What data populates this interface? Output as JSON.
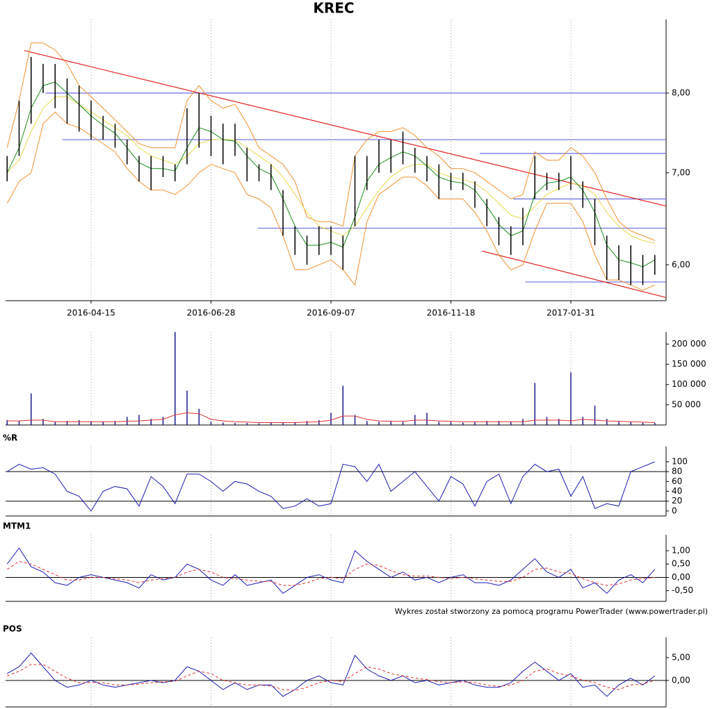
{
  "chart_data": [
    {
      "type": "stock",
      "title": "KREC",
      "log": true,
      "categories": [
        null,
        null,
        null,
        null,
        null,
        null,
        null,
        "2016-04-15",
        null,
        null,
        null,
        null,
        null,
        null,
        null,
        null,
        null,
        "2016-06-28",
        null,
        null,
        null,
        null,
        null,
        null,
        null,
        null,
        null,
        "2016-09-07",
        null,
        null,
        null,
        null,
        null,
        null,
        null,
        null,
        null,
        "2016-11-18",
        null,
        null,
        null,
        null,
        null,
        null,
        null,
        null,
        null,
        "2017-01-31",
        null,
        null,
        null,
        null,
        null,
        null,
        null
      ],
      "ylim": [
        5.65,
        9.05
      ],
      "yticks": [
        {
          "value": 6,
          "label": "6,00"
        },
        {
          "value": 7,
          "label": "7,00"
        },
        {
          "value": 8,
          "label": "8,00"
        }
      ],
      "color": "#000000",
      "high": [
        7.2,
        7.9,
        8.5,
        8.4,
        8.4,
        8.2,
        8.1,
        7.9,
        7.7,
        7.6,
        7.4,
        7.2,
        7.2,
        7.2,
        7.1,
        7.8,
        8.0,
        7.7,
        7.6,
        7.6,
        7.3,
        7.1,
        7.1,
        6.8,
        6.4,
        6.3,
        6.4,
        6.4,
        6.3,
        7.2,
        7.2,
        7.4,
        7.4,
        7.5,
        7.3,
        7.2,
        7.1,
        7.0,
        7.0,
        6.9,
        6.7,
        6.5,
        6.4,
        6.6,
        7.2,
        7.0,
        7.0,
        7.2,
        6.9,
        6.7,
        6.3,
        6.2,
        6.2,
        6.1,
        6.1
      ],
      "low": [
        6.9,
        7.2,
        7.6,
        8.0,
        7.8,
        7.6,
        7.5,
        7.4,
        7.4,
        7.3,
        7.1,
        6.9,
        6.8,
        6.95,
        6.9,
        7.1,
        7.3,
        7.2,
        7.1,
        7.2,
        6.9,
        6.9,
        6.8,
        6.3,
        6.1,
        6.0,
        6.1,
        6.1,
        5.95,
        6.4,
        6.8,
        7.0,
        7.0,
        7.1,
        7.0,
        6.9,
        6.7,
        6.8,
        6.8,
        6.6,
        6.4,
        6.2,
        6.1,
        6.2,
        6.7,
        6.8,
        6.8,
        6.8,
        6.6,
        6.2,
        5.85,
        5.85,
        5.8,
        5.8,
        5.9
      ],
      "series": [
        {
          "color": "#f09030",
          "values": [
            7.3,
            7.9,
            8.7,
            8.7,
            8.6,
            8.4,
            8.1,
            7.95,
            7.8,
            7.65,
            7.5,
            7.35,
            7.3,
            7.3,
            7.3,
            7.9,
            8.1,
            7.9,
            7.8,
            7.85,
            7.6,
            7.3,
            7.2,
            7.1,
            6.9,
            6.5,
            6.45,
            6.45,
            6.4,
            7.2,
            7.4,
            7.5,
            7.5,
            7.55,
            7.45,
            7.3,
            7.2,
            7.05,
            7.05,
            7.0,
            6.9,
            6.8,
            6.7,
            6.75,
            7.25,
            7.15,
            7.15,
            7.3,
            7.2,
            7.0,
            6.7,
            6.45,
            6.35,
            6.3,
            6.25
          ]
        },
        {
          "color": "#f09030",
          "values": [
            6.65,
            6.9,
            7.0,
            7.6,
            7.75,
            7.6,
            7.55,
            7.45,
            7.35,
            7.25,
            7.05,
            6.9,
            6.8,
            6.8,
            6.75,
            6.85,
            7.0,
            7.1,
            7.05,
            7.0,
            6.75,
            6.7,
            6.6,
            6.3,
            5.95,
            5.95,
            6.0,
            6.05,
            5.95,
            5.8,
            6.45,
            6.75,
            6.85,
            6.95,
            6.95,
            6.85,
            6.7,
            6.7,
            6.7,
            6.55,
            6.35,
            6.1,
            5.95,
            6.0,
            6.35,
            6.65,
            6.65,
            6.65,
            6.45,
            6.1,
            5.85,
            5.85,
            5.8,
            5.75,
            5.8
          ]
        },
        {
          "color": "#e6d84a",
          "values": [
            7.0,
            7.15,
            7.5,
            7.8,
            7.95,
            7.95,
            7.85,
            7.75,
            7.65,
            7.55,
            7.45,
            7.3,
            7.2,
            7.15,
            7.1,
            7.2,
            7.35,
            7.4,
            7.4,
            7.4,
            7.3,
            7.2,
            7.1,
            6.95,
            6.75,
            6.55,
            6.4,
            6.35,
            6.3,
            6.4,
            6.6,
            6.8,
            6.95,
            7.05,
            7.1,
            7.1,
            7.0,
            6.95,
            6.92,
            6.88,
            6.78,
            6.65,
            6.52,
            6.48,
            6.62,
            6.75,
            6.82,
            6.88,
            6.85,
            6.75,
            6.55,
            6.4,
            6.3,
            6.25,
            6.22
          ]
        },
        {
          "color": "#1a8a1a",
          "values": [
            7.0,
            7.3,
            7.8,
            8.1,
            8.15,
            8.0,
            7.85,
            7.7,
            7.58,
            7.48,
            7.3,
            7.12,
            7.05,
            7.05,
            7.02,
            7.3,
            7.55,
            7.5,
            7.4,
            7.38,
            7.2,
            7.05,
            6.98,
            6.7,
            6.4,
            6.2,
            6.2,
            6.23,
            6.18,
            6.5,
            6.9,
            7.1,
            7.18,
            7.25,
            7.2,
            7.08,
            6.95,
            6.9,
            6.88,
            6.8,
            6.62,
            6.42,
            6.3,
            6.35,
            6.75,
            6.88,
            6.9,
            6.95,
            6.8,
            6.55,
            6.2,
            6.05,
            6.02,
            5.98,
            6.05
          ]
        }
      ],
      "level_color": "#6a6ae0",
      "levels": [
        {
          "value": 8.0,
          "from": 3.2
        },
        {
          "value": 7.4,
          "from": 4.6
        },
        {
          "value": 7.23,
          "from": 39.4
        },
        {
          "value": 6.7,
          "from": 42.2
        },
        {
          "value": 6.38,
          "from": 20.9
        },
        {
          "value": 5.83,
          "from": 43.2
        }
      ],
      "trend_color": "#e02020",
      "trendlines": [
        {
          "x": [
            1.43,
            54.95
          ],
          "y": [
            8.59,
            6.62
          ]
        },
        {
          "x": [
            39.6,
            54.95
          ],
          "y": [
            6.14,
            5.68
          ]
        }
      ]
    },
    {
      "type": "bar",
      "ylim": [
        0,
        230000
      ],
      "yticks": [
        {
          "value": 50000,
          "label": "50 000"
        },
        {
          "value": 100000,
          "label": "100 000"
        },
        {
          "value": 150000,
          "label": "150 000"
        },
        {
          "value": 200000,
          "label": "200 000"
        }
      ],
      "color": "#1a1a8c",
      "values": [
        12000,
        10000,
        78000,
        15000,
        8000,
        10000,
        12000,
        9000,
        8000,
        10000,
        20000,
        25000,
        15000,
        20000,
        230000,
        85000,
        40000,
        8000,
        6000,
        5000,
        5000,
        4000,
        6000,
        5000,
        7000,
        10000,
        12000,
        30000,
        97000,
        25000,
        10000,
        8000,
        10000,
        8000,
        25000,
        30000,
        8000,
        8000,
        6000,
        8000,
        10000,
        10000,
        8000,
        15000,
        104000,
        20000,
        15000,
        130000,
        20000,
        48000,
        15000,
        10000,
        8000,
        6000,
        5000
      ],
      "series": [
        {
          "color": "#e03030",
          "values": [
            10000,
            10000,
            12000,
            12000,
            8000,
            8000,
            8000,
            8000,
            8000,
            8000,
            9000,
            10000,
            12000,
            14000,
            25000,
            30000,
            28000,
            14000,
            10000,
            8000,
            7000,
            6000,
            6000,
            6000,
            6000,
            7000,
            8000,
            12000,
            22000,
            22000,
            14000,
            10000,
            9000,
            9000,
            12000,
            12000,
            10000,
            9000,
            8000,
            8000,
            8000,
            8000,
            8000,
            8000,
            12000,
            12000,
            12000,
            10000,
            14000,
            12000,
            10000,
            9000,
            8000,
            7000,
            6000
          ]
        }
      ]
    },
    {
      "type": "line",
      "title": "%R",
      "ylim": [
        -10,
        131
      ],
      "yticks": [
        0,
        20,
        40,
        60,
        80,
        100
      ],
      "reference_lines": [
        20,
        80
      ],
      "series": [
        {
          "color": "#1a1ab0",
          "values": [
            80,
            95,
            85,
            88,
            75,
            40,
            30,
            0,
            40,
            50,
            45,
            10,
            70,
            50,
            15,
            75,
            75,
            60,
            40,
            60,
            55,
            40,
            30,
            5,
            10,
            25,
            10,
            15,
            95,
            90,
            60,
            95,
            40,
            60,
            80,
            50,
            20,
            70,
            55,
            10,
            60,
            75,
            15,
            70,
            95,
            80,
            85,
            30,
            70,
            5,
            15,
            10,
            80,
            90,
            100
          ]
        }
      ]
    },
    {
      "type": "line",
      "title": "MTM1",
      "ylim": [
        -0.9,
        1.6
      ],
      "yticks": [
        {
          "value": -0.5,
          "label": "-0,50"
        },
        {
          "value": 0,
          "label": "0,00"
        },
        {
          "value": 0.5,
          "label": "0,50"
        },
        {
          "value": 1,
          "label": "1,00"
        }
      ],
      "reference_lines": [
        0
      ],
      "series": [
        {
          "color": "#1a1ab0",
          "values": [
            0.5,
            1.1,
            0.4,
            0.2,
            -0.2,
            -0.3,
            0,
            0.1,
            0,
            -0.1,
            -0.2,
            -0.4,
            0.1,
            -0.1,
            0,
            0.5,
            0.3,
            -0.1,
            -0.3,
            0.1,
            -0.3,
            -0.2,
            -0.1,
            -0.6,
            -0.3,
            0,
            0.1,
            -0.1,
            -0.2,
            1.0,
            0.6,
            0.3,
            0,
            0.2,
            -0.1,
            0,
            -0.2,
            0,
            0.1,
            -0.2,
            -0.2,
            -0.3,
            -0.1,
            0.3,
            0.7,
            0.2,
            0,
            0.3,
            -0.4,
            -0.2,
            -0.6,
            -0.1,
            0.1,
            -0.2,
            0.3
          ]
        },
        {
          "color": "#e03030",
          "dash": true,
          "values": [
            0.3,
            0.6,
            0.5,
            0.3,
            0.1,
            -0.1,
            -0.1,
            0,
            0,
            -0.05,
            -0.1,
            -0.2,
            -0.1,
            -0.05,
            0,
            0.2,
            0.3,
            0.2,
            0,
            -0.05,
            -0.1,
            -0.15,
            -0.15,
            -0.3,
            -0.3,
            -0.2,
            -0.05,
            0,
            -0.05,
            0.3,
            0.5,
            0.45,
            0.25,
            0.1,
            0.05,
            0.05,
            0,
            -0.05,
            0,
            -0.05,
            -0.1,
            -0.15,
            -0.15,
            0,
            0.3,
            0.35,
            0.2,
            0.15,
            -0.05,
            -0.2,
            -0.3,
            -0.25,
            -0.1,
            -0.05,
            0
          ]
        }
      ]
    },
    {
      "type": "line",
      "title": "POS",
      "ylim": [
        -5.8,
        9.4
      ],
      "yticks": [
        {
          "value": 0,
          "label": "0,00"
        },
        {
          "value": 5,
          "label": "5,00"
        }
      ],
      "reference_lines": [
        0
      ],
      "series": [
        {
          "color": "#1a1ab0",
          "values": [
            1.5,
            3,
            6,
            3,
            0,
            -1.5,
            -1,
            0,
            -1,
            -1.5,
            -1,
            -0.5,
            0,
            -0.5,
            0,
            3,
            2,
            0,
            -2,
            -0.5,
            -2,
            -1,
            -1,
            -3.5,
            -2,
            0,
            1,
            -0.5,
            -1,
            5.5,
            2.5,
            1,
            0,
            1,
            -0.5,
            0,
            -1,
            -0.5,
            0,
            -1,
            -1.5,
            -1.5,
            -0.5,
            2,
            4,
            2,
            0,
            1.5,
            -1.5,
            -1,
            -3.5,
            -1,
            0.5,
            -1,
            1
          ]
        },
        {
          "color": "#e03030",
          "dash": true,
          "values": [
            1,
            2,
            3.5,
            3.5,
            2,
            0.5,
            -0.5,
            -0.5,
            -0.5,
            -1,
            -1,
            -0.8,
            -0.5,
            -0.3,
            -0.2,
            1,
            2,
            1.5,
            0,
            -0.5,
            -1,
            -1,
            -1.2,
            -2,
            -2.2,
            -1.5,
            -0.5,
            0,
            -0.2,
            1.5,
            3,
            2.5,
            1.5,
            1,
            0.5,
            0.2,
            -0.3,
            -0.5,
            -0.3,
            -0.5,
            -1,
            -1.3,
            -1,
            0,
            2,
            2.5,
            1.5,
            1,
            0,
            -0.5,
            -1.5,
            -2,
            -1,
            -0.8,
            0
          ]
        }
      ]
    }
  ],
  "footer": "Wykres został stworzony za pomocą programu PowerTrader (www.powertrader.pl)"
}
